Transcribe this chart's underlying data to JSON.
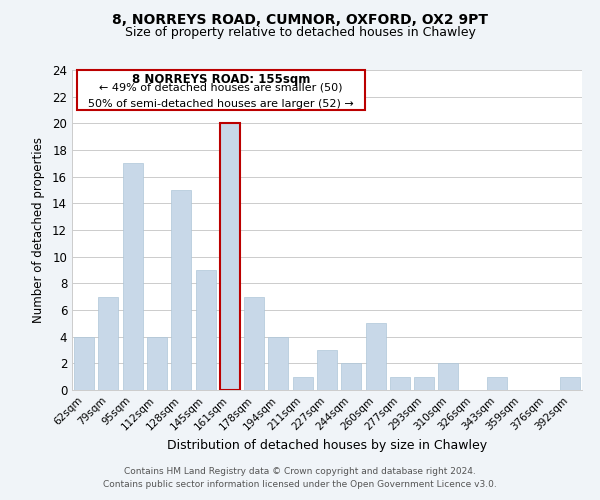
{
  "title_line1": "8, NORREYS ROAD, CUMNOR, OXFORD, OX2 9PT",
  "title_line2": "Size of property relative to detached houses in Chawley",
  "xlabel": "Distribution of detached houses by size in Chawley",
  "ylabel": "Number of detached properties",
  "bar_color": "#c8d8e8",
  "bar_edge_color": "#aec6d8",
  "categories": [
    "62sqm",
    "79sqm",
    "95sqm",
    "112sqm",
    "128sqm",
    "145sqm",
    "161sqm",
    "178sqm",
    "194sqm",
    "211sqm",
    "227sqm",
    "244sqm",
    "260sqm",
    "277sqm",
    "293sqm",
    "310sqm",
    "326sqm",
    "343sqm",
    "359sqm",
    "376sqm",
    "392sqm"
  ],
  "values": [
    4,
    7,
    17,
    4,
    15,
    9,
    20,
    7,
    4,
    1,
    3,
    2,
    5,
    1,
    1,
    2,
    0,
    1,
    0,
    0,
    1
  ],
  "ylim": [
    0,
    24
  ],
  "yticks": [
    0,
    2,
    4,
    6,
    8,
    10,
    12,
    14,
    16,
    18,
    20,
    22,
    24
  ],
  "highlight_bar_index": 6,
  "highlight_bar_color": "#c8d8e8",
  "highlight_bar_edge_color": "#bb0000",
  "annotation_title": "8 NORREYS ROAD: 155sqm",
  "annotation_line1": "← 49% of detached houses are smaller (50)",
  "annotation_line2": "50% of semi-detached houses are larger (52) →",
  "annotation_box_edge_color": "#bb0000",
  "footer_line1": "Contains HM Land Registry data © Crown copyright and database right 2024.",
  "footer_line2": "Contains public sector information licensed under the Open Government Licence v3.0.",
  "grid_color": "#cccccc",
  "background_color": "#f0f4f8",
  "plot_bg_color": "#ffffff"
}
